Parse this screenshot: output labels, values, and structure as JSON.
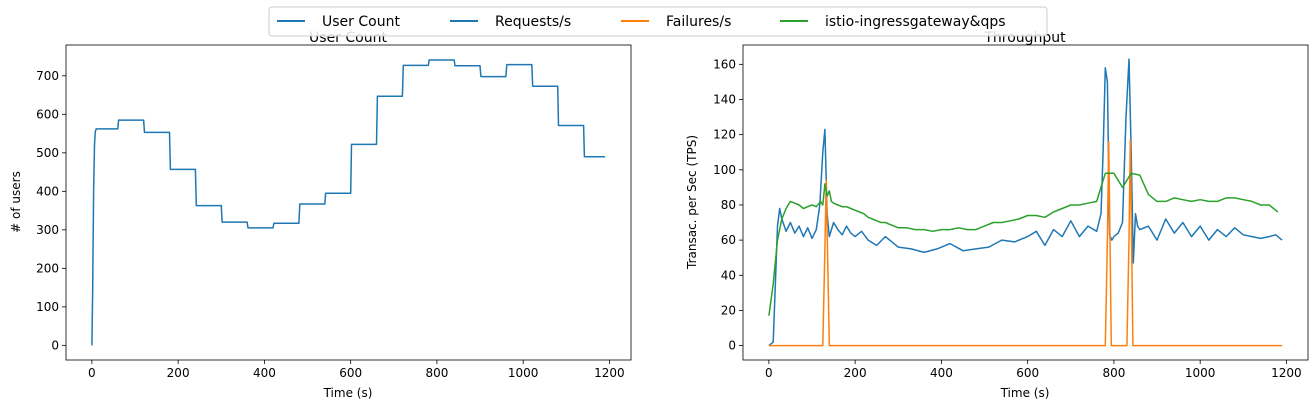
{
  "legend": {
    "location": "top-center",
    "entries": [
      {
        "name": "User Count",
        "color": "#1f77b4"
      },
      {
        "name": "Requests/s",
        "color": "#1f77b4"
      },
      {
        "name": "Failures/s",
        "color": "#ff7f0e"
      },
      {
        "name": "istio-ingressgateway&qps",
        "color": "#2ca02c"
      }
    ]
  },
  "chart_data": [
    {
      "type": "line",
      "title": "User Count",
      "xlabel": "Time (s)",
      "ylabel": "# of users",
      "xlim": [
        -60,
        1250
      ],
      "ylim": [
        -38,
        780
      ],
      "xticks": [
        0,
        200,
        400,
        600,
        800,
        1000,
        1200
      ],
      "yticks": [
        0,
        100,
        200,
        300,
        400,
        500,
        600,
        700
      ],
      "grid": false,
      "series": [
        {
          "name": "User Count",
          "color": "#1f77b4",
          "x": [
            0,
            2,
            4,
            6,
            8,
            10,
            60,
            62,
            120,
            122,
            180,
            182,
            240,
            242,
            300,
            302,
            360,
            362,
            420,
            422,
            480,
            482,
            540,
            542,
            600,
            602,
            660,
            662,
            720,
            722,
            780,
            782,
            840,
            842,
            900,
            902,
            960,
            962,
            1020,
            1022,
            1080,
            1082,
            1140,
            1142,
            1190
          ],
          "values": [
            0,
            150,
            400,
            520,
            555,
            562,
            562,
            585,
            585,
            553,
            553,
            457,
            457,
            363,
            363,
            320,
            320,
            305,
            305,
            317,
            317,
            367,
            367,
            395,
            395,
            522,
            522,
            647,
            647,
            727,
            727,
            741,
            741,
            726,
            726,
            698,
            698,
            729,
            729,
            673,
            673,
            571,
            571,
            490,
            490
          ]
        }
      ]
    },
    {
      "type": "line",
      "title": "Throughput",
      "xlabel": "Time (s)",
      "ylabel": "Transac. per Sec (TPS)",
      "xlim": [
        -60,
        1250
      ],
      "ylim": [
        -8.2,
        171
      ],
      "xticks": [
        0,
        200,
        400,
        600,
        800,
        1000,
        1200
      ],
      "yticks": [
        0,
        20,
        40,
        60,
        80,
        100,
        120,
        140,
        160
      ],
      "grid": false,
      "series": [
        {
          "name": "Requests/s",
          "color": "#1f77b4",
          "x": [
            0,
            10,
            20,
            25,
            30,
            40,
            50,
            60,
            70,
            80,
            90,
            100,
            110,
            118,
            125,
            130,
            135,
            140,
            150,
            160,
            170,
            180,
            190,
            200,
            215,
            230,
            250,
            270,
            300,
            330,
            360,
            390,
            420,
            450,
            480,
            510,
            540,
            570,
            600,
            620,
            640,
            660,
            680,
            700,
            720,
            740,
            760,
            770,
            775,
            780,
            785,
            790,
            795,
            800,
            810,
            820,
            828,
            835,
            840,
            845,
            850,
            855,
            860,
            880,
            900,
            920,
            940,
            960,
            980,
            1000,
            1020,
            1040,
            1060,
            1080,
            1100,
            1120,
            1140,
            1160,
            1175,
            1190
          ],
          "values": [
            0,
            2,
            68,
            78,
            72,
            65,
            70,
            64,
            68,
            62,
            67,
            61,
            66,
            80,
            110,
            123,
            75,
            62,
            70,
            66,
            63,
            68,
            64,
            62,
            65,
            60,
            57,
            62,
            56,
            55,
            53,
            55,
            58,
            54,
            55,
            56,
            60,
            59,
            62,
            65,
            57,
            66,
            62,
            71,
            62,
            68,
            65,
            75,
            110,
            158,
            150,
            63,
            60,
            62,
            64,
            70,
            130,
            163,
            110,
            47,
            75,
            68,
            66,
            68,
            60,
            72,
            64,
            70,
            62,
            68,
            60,
            66,
            62,
            67,
            63,
            62,
            61,
            62,
            63,
            60
          ]
        },
        {
          "name": "Failures/s",
          "color": "#ff7f0e",
          "x": [
            0,
            125,
            130,
            133,
            136,
            140,
            780,
            785,
            788,
            791,
            794,
            830,
            835,
            838,
            841,
            844,
            1190
          ],
          "values": [
            0,
            0,
            55,
            94,
            55,
            0,
            0,
            60,
            116,
            60,
            0,
            0,
            60,
            117,
            60,
            0,
            0
          ]
        },
        {
          "name": "istio-ingressgateway&qps",
          "color": "#2ca02c",
          "x": [
            0,
            10,
            20,
            30,
            40,
            50,
            60,
            70,
            80,
            90,
            100,
            110,
            120,
            125,
            130,
            135,
            140,
            145,
            150,
            160,
            170,
            180,
            190,
            200,
            210,
            220,
            230,
            240,
            250,
            260,
            270,
            280,
            290,
            300,
            320,
            340,
            360,
            380,
            400,
            420,
            440,
            460,
            480,
            500,
            520,
            540,
            560,
            580,
            600,
            620,
            640,
            660,
            680,
            700,
            720,
            740,
            760,
            780,
            800,
            820,
            840,
            860,
            880,
            900,
            920,
            940,
            960,
            980,
            1000,
            1020,
            1040,
            1060,
            1080,
            1100,
            1120,
            1140,
            1160,
            1175,
            1180
          ],
          "values": [
            17,
            35,
            60,
            72,
            78,
            82,
            81,
            80,
            78,
            79,
            80,
            79,
            82,
            80,
            92,
            85,
            88,
            82,
            81,
            80,
            79,
            79,
            78,
            77,
            76,
            75,
            73,
            72,
            71,
            70,
            70,
            69,
            68,
            67,
            67,
            66,
            66,
            65,
            66,
            66,
            67,
            66,
            66,
            68,
            70,
            70,
            71,
            72,
            74,
            74,
            73,
            76,
            78,
            80,
            80,
            81,
            82,
            98,
            98,
            90,
            98,
            97,
            86,
            82,
            82,
            84,
            83,
            82,
            83,
            82,
            82,
            84,
            84,
            83,
            82,
            80,
            80,
            77,
            76
          ]
        }
      ]
    }
  ]
}
